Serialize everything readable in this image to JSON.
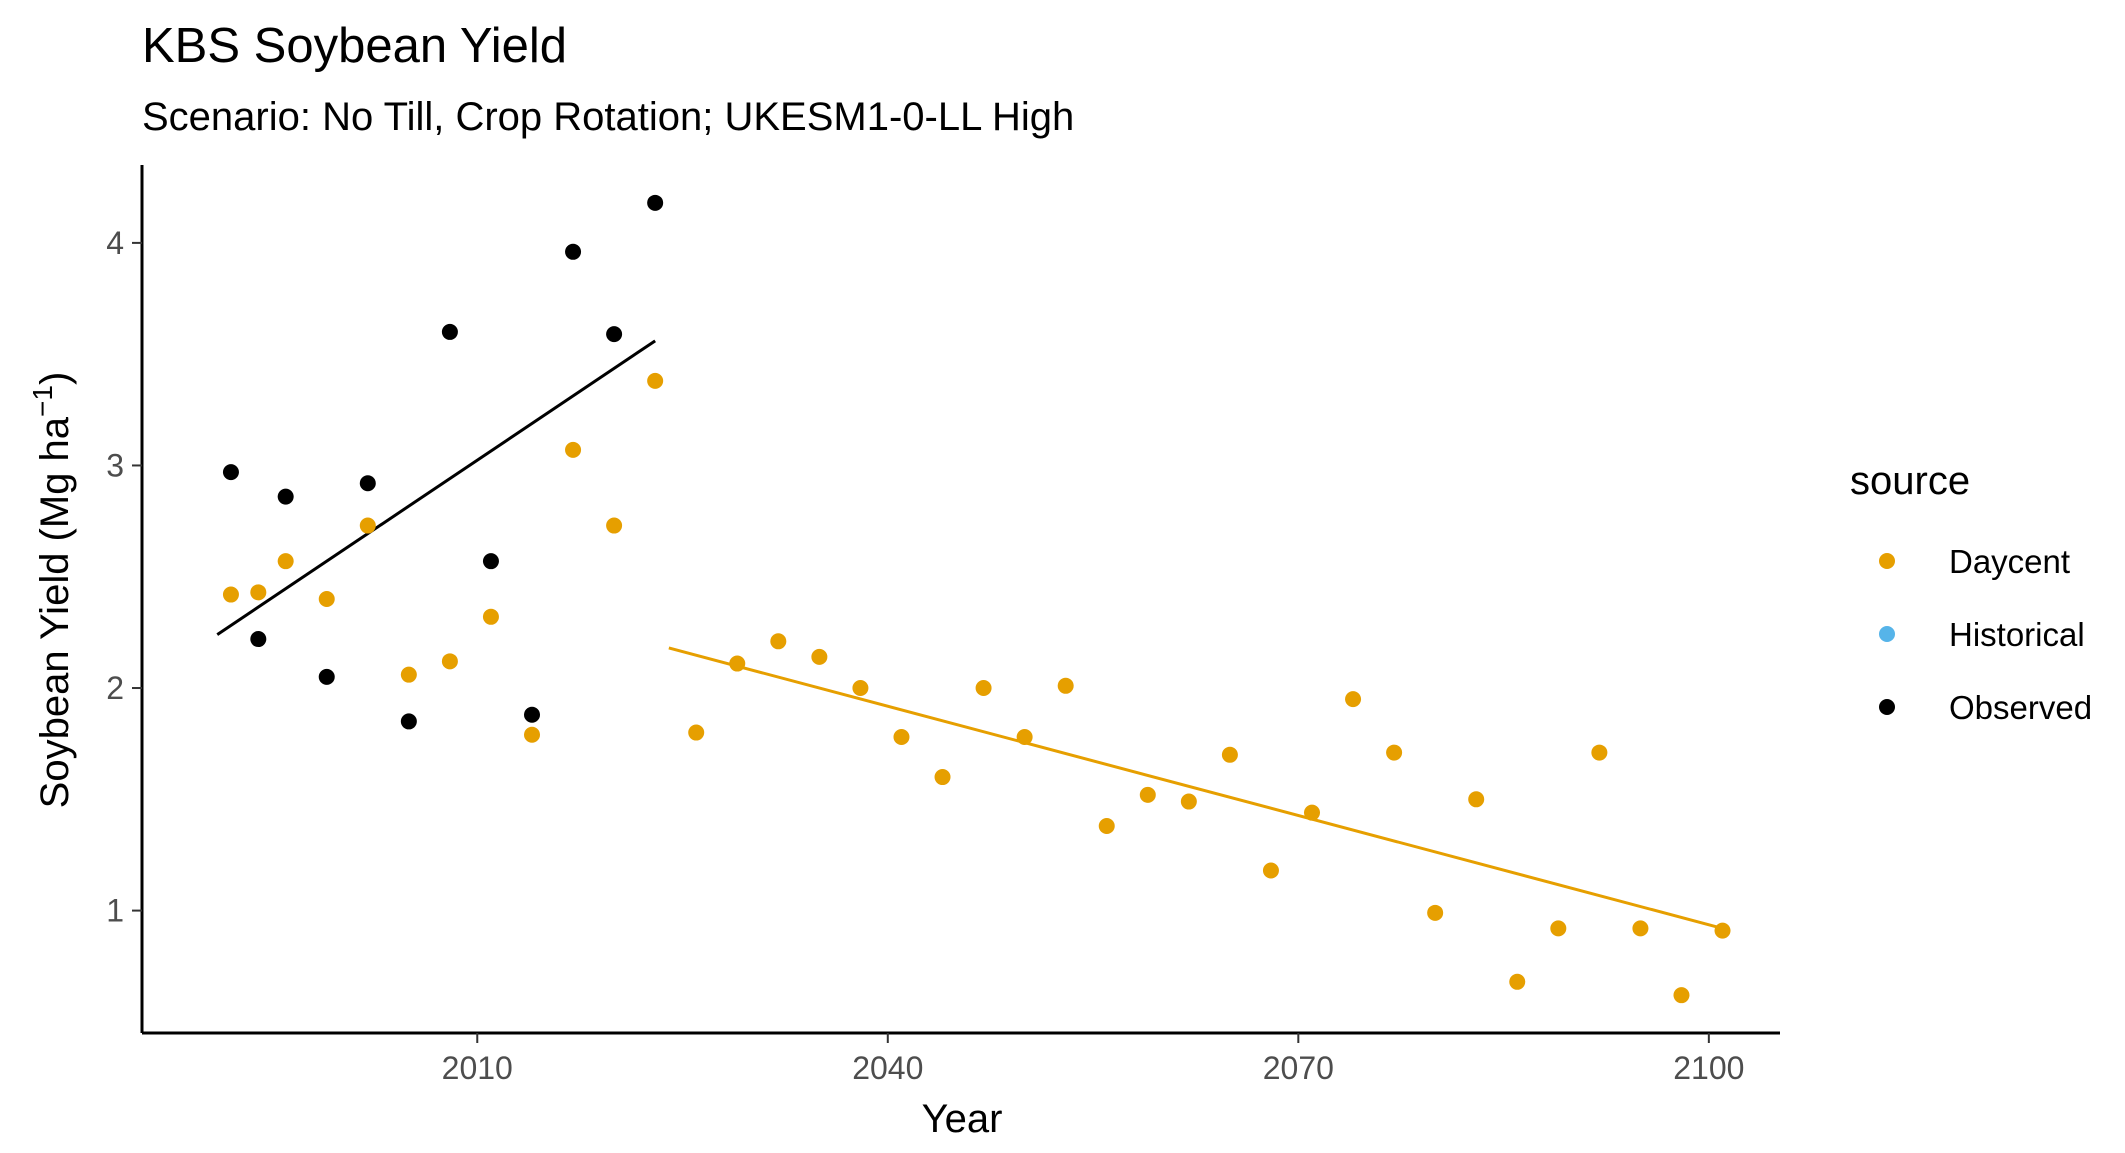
{
  "chart_data": {
    "type": "scatter",
    "title": "KBS Soybean Yield",
    "subtitle": "Scenario: No Till, Crop Rotation; UKESM1-0-LL High",
    "xlabel": "Year",
    "ylabel": "Soybean Yield (Mg ha",
    "ylabel_sup": "−1",
    "ylabel_close": ")",
    "xlim": [
      1985.5,
      2105.2
    ],
    "ylim": [
      0.45,
      4.35
    ],
    "xticks": [
      2010,
      2040,
      2070,
      2100
    ],
    "yticks": [
      1,
      2,
      3,
      4
    ],
    "grid": false,
    "legend": {
      "title": "source",
      "position": "right",
      "entries": [
        {
          "label": "Daycent",
          "color": "#E69F00"
        },
        {
          "label": "Historical",
          "color": "#56B4E9"
        },
        {
          "label": "Observed",
          "color": "#000000"
        }
      ]
    },
    "series": [
      {
        "name": "Observed",
        "color": "#000000",
        "points": [
          [
            1992,
            2.97
          ],
          [
            1994,
            2.22
          ],
          [
            1996,
            2.86
          ],
          [
            1999,
            2.05
          ],
          [
            2002,
            2.92
          ],
          [
            2005,
            1.85
          ],
          [
            2008,
            3.6
          ],
          [
            2011,
            2.57
          ],
          [
            2014,
            1.88
          ],
          [
            2017,
            3.96
          ],
          [
            2020,
            3.59
          ],
          [
            2023,
            4.18
          ]
        ],
        "trend": [
          [
            1991,
            2.24
          ],
          [
            2023,
            3.56
          ]
        ]
      },
      {
        "name": "Daycent",
        "color": "#E69F00",
        "points": [
          [
            1992,
            2.42
          ],
          [
            1994,
            2.43
          ],
          [
            1996,
            2.57
          ],
          [
            1999,
            2.4
          ],
          [
            2002,
            2.73
          ],
          [
            2005,
            2.06
          ],
          [
            2008,
            2.12
          ],
          [
            2011,
            2.32
          ],
          [
            2014,
            1.79
          ],
          [
            2017,
            3.07
          ],
          [
            2020,
            2.73
          ],
          [
            2023,
            3.38
          ],
          [
            2026,
            1.8
          ],
          [
            2029,
            2.11
          ],
          [
            2032,
            2.21
          ],
          [
            2035,
            2.14
          ],
          [
            2038,
            2.0
          ],
          [
            2041,
            1.78
          ],
          [
            2044,
            1.6
          ],
          [
            2047,
            2.0
          ],
          [
            2050,
            1.78
          ],
          [
            2053,
            2.01
          ],
          [
            2056,
            1.38
          ],
          [
            2059,
            1.52
          ],
          [
            2062,
            1.49
          ],
          [
            2065,
            1.7
          ],
          [
            2068,
            1.18
          ],
          [
            2071,
            1.44
          ],
          [
            2074,
            1.95
          ],
          [
            2077,
            1.71
          ],
          [
            2080,
            0.99
          ],
          [
            2083,
            1.5
          ],
          [
            2086,
            0.68
          ],
          [
            2089,
            0.92
          ],
          [
            2092,
            1.71
          ],
          [
            2095,
            0.92
          ],
          [
            2098,
            0.62
          ],
          [
            2101,
            0.91
          ]
        ],
        "trend": [
          [
            2024,
            2.18
          ],
          [
            2101,
            0.92
          ]
        ]
      }
    ]
  }
}
